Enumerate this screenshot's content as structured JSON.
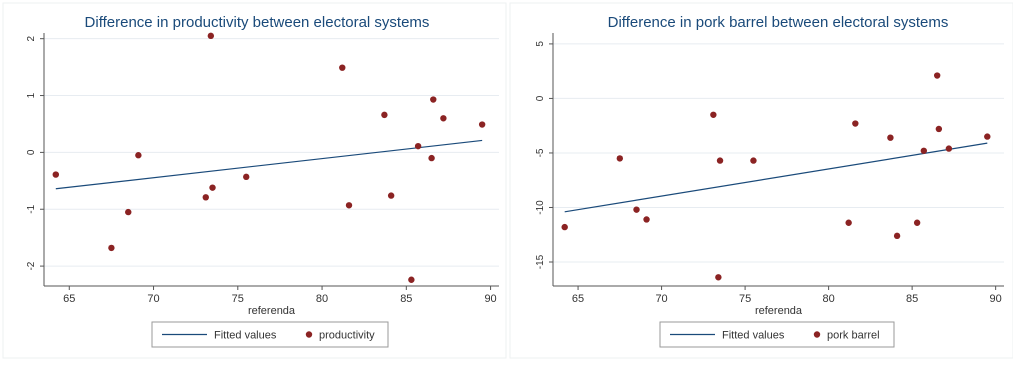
{
  "colors": {
    "background": "#ffffff",
    "plot_area": "#ffffff",
    "grid": "#e7ecf1",
    "axis": "#555555",
    "title": "#1a4a7a",
    "fitted_line": "#1a4a7a",
    "marker": "#8b2323",
    "legend_border": "#9a9a9a"
  },
  "chart_data": [
    {
      "type": "scatter",
      "title": "Difference in productivity between electoral systems",
      "xlabel": "referenda",
      "ylabel": "",
      "xlim": [
        63.5,
        90.5
      ],
      "ylim": [
        -2.35,
        2.1
      ],
      "xticks": [
        65,
        70,
        75,
        80,
        85,
        90
      ],
      "yticks": [
        -2,
        -1,
        0,
        1,
        2
      ],
      "grid": true,
      "legend_position": "bottom",
      "series": [
        {
          "name": "Fitted values",
          "kind": "line",
          "x": [
            64.2,
            89.5
          ],
          "y": [
            -0.64,
            0.21
          ]
        },
        {
          "name": "productivity",
          "kind": "scatter",
          "x": [
            64.2,
            67.5,
            68.5,
            69.1,
            73.1,
            73.4,
            73.5,
            75.5,
            81.2,
            81.6,
            83.7,
            84.1,
            85.3,
            85.7,
            86.5,
            86.6,
            87.2,
            89.5
          ],
          "y": [
            -0.39,
            -1.68,
            -1.05,
            -0.05,
            -0.79,
            2.05,
            -0.62,
            -0.43,
            1.49,
            -0.93,
            0.66,
            -0.76,
            -2.24,
            0.11,
            -0.1,
            0.93,
            0.6,
            0.49
          ]
        }
      ]
    },
    {
      "type": "scatter",
      "title": "Difference in pork barrel between electoral systems",
      "xlabel": "referenda",
      "ylabel": "",
      "xlim": [
        63.5,
        90.5
      ],
      "ylim": [
        -17.2,
        6.0
      ],
      "xticks": [
        65,
        70,
        75,
        80,
        85,
        90
      ],
      "yticks": [
        -15,
        -10,
        -5,
        0,
        5
      ],
      "grid": true,
      "legend_position": "bottom",
      "series": [
        {
          "name": "Fitted values",
          "kind": "line",
          "x": [
            64.2,
            89.5
          ],
          "y": [
            -10.4,
            -4.1
          ]
        },
        {
          "name": "pork barrel",
          "kind": "scatter",
          "x": [
            64.2,
            67.5,
            68.5,
            69.1,
            73.1,
            73.4,
            73.5,
            75.5,
            81.2,
            81.6,
            83.7,
            84.1,
            85.3,
            85.7,
            86.5,
            86.6,
            87.2,
            89.5
          ],
          "y": [
            -11.8,
            -5.5,
            -10.2,
            -11.1,
            -1.5,
            -16.4,
            -5.7,
            -5.7,
            -11.4,
            -2.3,
            -3.6,
            -12.6,
            -11.4,
            -4.8,
            2.1,
            -2.8,
            -4.6,
            -3.5
          ]
        }
      ]
    }
  ]
}
